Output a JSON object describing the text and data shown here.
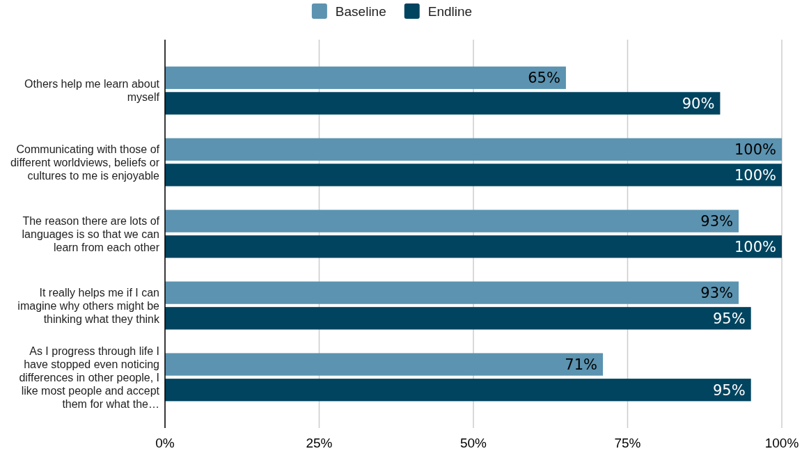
{
  "chart_data": {
    "type": "bar",
    "orientation": "horizontal",
    "categories": [
      "Others help me learn about myself",
      "Communicating with those of different worldviews, beliefs or cultures to me is enjoyable",
      "The reason there are lots of languages is so that we can learn from each other",
      "It really helps me if I can imagine why others might be thinking what they think",
      "As I progress through life I have stopped even noticing differences in other people, I like most people and accept them for what the…"
    ],
    "series": [
      {
        "name": "Baseline",
        "color": "#5b93b0",
        "values": [
          65,
          100,
          93,
          93,
          71
        ],
        "value_labels": [
          "65%",
          "100%",
          "93%",
          "93%",
          "71%"
        ]
      },
      {
        "name": "Endline",
        "color": "#00445f",
        "values": [
          90,
          100,
          100,
          95,
          95
        ],
        "value_labels": [
          "90%",
          "100%",
          "100%",
          "95%",
          "95%"
        ]
      }
    ],
    "xlim": [
      0,
      100
    ],
    "xticks": [
      {
        "value": 0,
        "label": "0%"
      },
      {
        "value": 25,
        "label": "25%"
      },
      {
        "value": 50,
        "label": "50%"
      },
      {
        "value": 75,
        "label": "75%"
      },
      {
        "value": 100,
        "label": "100%"
      }
    ],
    "grid": "x",
    "legend": "top"
  }
}
